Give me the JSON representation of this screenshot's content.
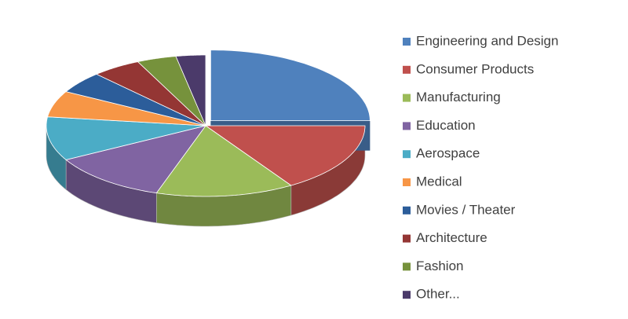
{
  "chart_data": {
    "type": "pie",
    "categories": [
      "Engineering and Design",
      "Consumer Products",
      "Manufacturing",
      "Education",
      "Aerospace",
      "Medical",
      "Movies / Theater",
      "Architecture",
      "Fashion",
      "Other..."
    ],
    "values": [
      25,
      16,
      14,
      12,
      10,
      6,
      5,
      5,
      4,
      3
    ],
    "colors": [
      "#4f81bd",
      "#c0504d",
      "#9bbb59",
      "#8064a2",
      "#4bacc6",
      "#f79646",
      "#2c5d9a",
      "#943634",
      "#76923c",
      "#4b3a6a"
    ],
    "legend": "right"
  }
}
